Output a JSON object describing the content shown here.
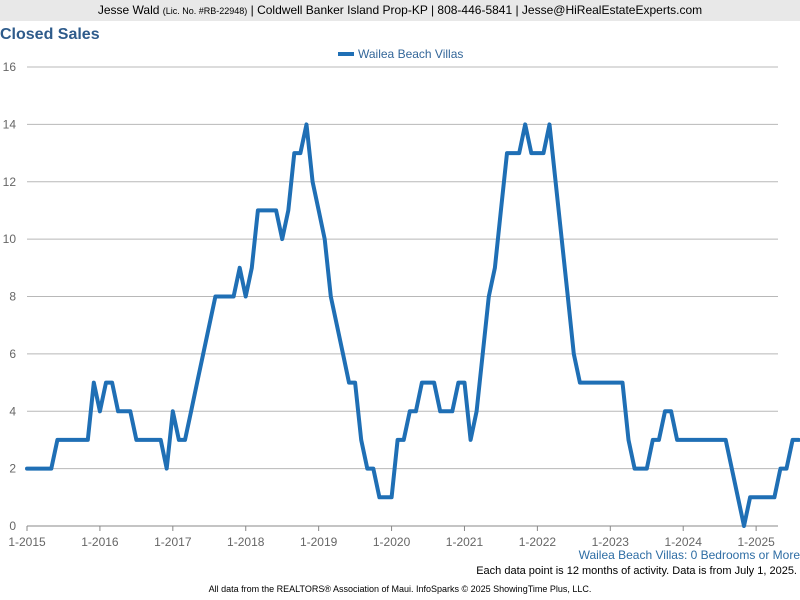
{
  "header": {
    "name": "Jesse Wald",
    "license": "(Lic. No. #RB-22948)",
    "details": "| Coldwell Banker Island Prop-KP | 808-446-5841 | Jesse@HiRealEstateExperts.com"
  },
  "chart_data": {
    "type": "line",
    "title": "Closed Sales",
    "xlabel": "",
    "ylabel": "",
    "ylim": [
      0,
      16
    ],
    "yticks": [
      0,
      2,
      4,
      6,
      8,
      10,
      12,
      14,
      16
    ],
    "xticks": [
      "1-2015",
      "1-2016",
      "1-2017",
      "1-2018",
      "1-2019",
      "1-2020",
      "1-2021",
      "1-2022",
      "1-2023",
      "1-2024",
      "1-2025"
    ],
    "grid": true,
    "legend_position": "top-center",
    "series": [
      {
        "name": "Wailea Beach Villas",
        "color": "#1f6fb5",
        "start": "1-2015",
        "interval": "month",
        "values": [
          2,
          2,
          2,
          2,
          2,
          3,
          3,
          3,
          3,
          3,
          3,
          5,
          4,
          5,
          5,
          4,
          4,
          4,
          3,
          3,
          3,
          3,
          3,
          2,
          4,
          3,
          3,
          4,
          5,
          6,
          7,
          8,
          8,
          8,
          8,
          9,
          8,
          9,
          11,
          11,
          11,
          11,
          10,
          11,
          13,
          13,
          14,
          12,
          11,
          10,
          8,
          7,
          6,
          5,
          5,
          3,
          2,
          2,
          1,
          1,
          1,
          3,
          3,
          4,
          4,
          5,
          5,
          5,
          4,
          4,
          4,
          5,
          5,
          3,
          4,
          6,
          8,
          9,
          11,
          13,
          13,
          13,
          14,
          13,
          13,
          13,
          14,
          12,
          10,
          8,
          6,
          5,
          5,
          5,
          5,
          5,
          5,
          5,
          5,
          3,
          2,
          2,
          2,
          3,
          3,
          4,
          4,
          3,
          3,
          3,
          3,
          3,
          3,
          3,
          3,
          3,
          2,
          1,
          0,
          1,
          1,
          1,
          1,
          1,
          2,
          2,
          3,
          3
        ]
      }
    ]
  },
  "subtitle": "Wailea Beach Villas: 0 Bedrooms or More",
  "note": "Each data point is 12 months of activity. Data is from July 1, 2025.",
  "footer": "All data from the REALTORS® Association of Maui. InfoSparks © 2025 ShowingTime Plus, LLC."
}
